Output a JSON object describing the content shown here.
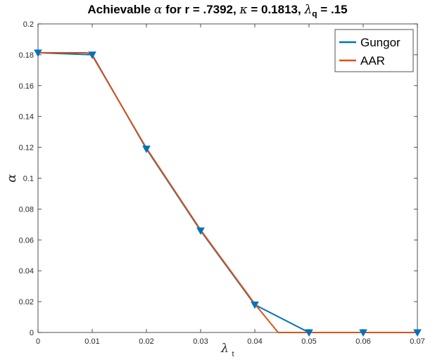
{
  "title_parts": {
    "p1": "Achievable ",
    "alpha": "α",
    "p2": " for r = .7392, ",
    "kappa": "κ",
    "p3": " = 0.1813, ",
    "lambda": "λ",
    "sub": "q",
    "p4": " = .15"
  },
  "chart_data": {
    "type": "line",
    "title": "Achievable α for r = .7392, κ = 0.1813, λq = .15",
    "xlabel": "λ",
    "xlabel_sub": "t",
    "ylabel": "α",
    "xlim": [
      0,
      0.07
    ],
    "ylim": [
      0,
      0.2
    ],
    "xticks": [
      0,
      0.01,
      0.02,
      0.03,
      0.04,
      0.05,
      0.06,
      0.07
    ],
    "xtick_labels": [
      "0",
      "0.01",
      "0.02",
      "0.03",
      "0.04",
      "0.05",
      "0.06",
      "0.07"
    ],
    "yticks": [
      0,
      0.02,
      0.04,
      0.06,
      0.08,
      0.1,
      0.12,
      0.14,
      0.16,
      0.18,
      0.2
    ],
    "ytick_labels": [
      "0",
      "0.02",
      "0.04",
      "0.06",
      "0.08",
      "0.1",
      "0.12",
      "0.14",
      "0.16",
      "0.18",
      "0.2"
    ],
    "grid": false,
    "legend_position": "top-right",
    "series": [
      {
        "name": "Gungor",
        "color": "#0072BD",
        "marker": "triangle-down",
        "x": [
          0,
          0.01,
          0.02,
          0.03,
          0.04,
          0.05,
          0.06,
          0.07
        ],
        "y": [
          0.1813,
          0.18,
          0.119,
          0.066,
          0.018,
          0,
          0,
          0
        ]
      },
      {
        "name": "AAR",
        "color": "#D95319",
        "marker": "none",
        "x": [
          0,
          0.009,
          0.01,
          0.02,
          0.03,
          0.04,
          0.0443,
          0.05,
          0.06,
          0.07
        ],
        "y": [
          0.1813,
          0.1813,
          0.1795,
          0.1195,
          0.0665,
          0.0185,
          0,
          0,
          0,
          0
        ]
      }
    ]
  }
}
